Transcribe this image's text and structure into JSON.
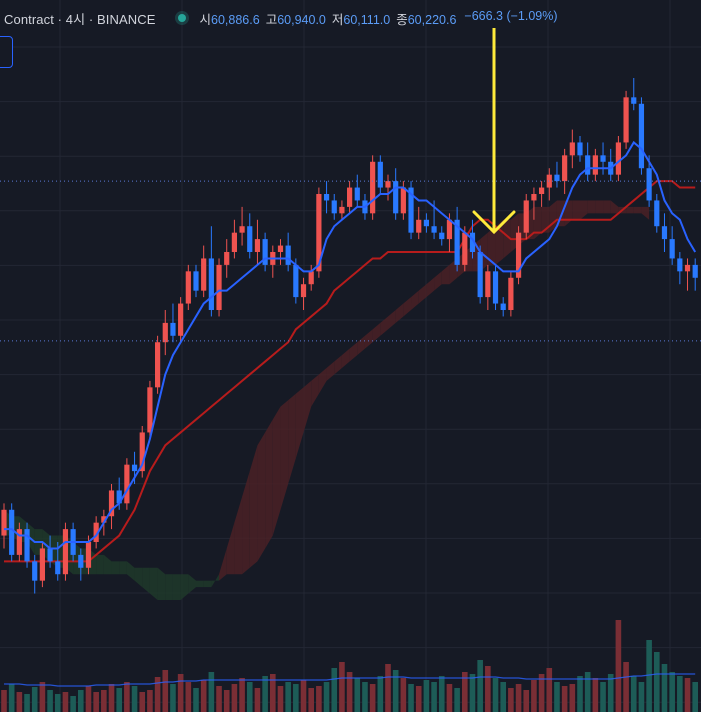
{
  "header": {
    "symbol": "Contract · 4시 · BINANCE",
    "status_color": "#26a69a",
    "open_label": "시",
    "open_value": "60,886.6",
    "high_label": "고",
    "high_value": "60,940.0",
    "low_label": "저",
    "low_value": "60,111.0",
    "close_label": "종",
    "close_value": "60,220.6",
    "change": "−666.3 (−1.09%)"
  },
  "colors": {
    "background": "#161a25",
    "grid": "#232734",
    "up": "#ef5350",
    "down": "#2979ff",
    "conversion_line": "#2962ff",
    "base_line": "#b71c1c",
    "cloud_bull": "#1e3a2a",
    "cloud_bear": "#4a2126",
    "volume_up": "#7a2e35",
    "volume_down": "#1d5c57",
    "arrow": "#ffeb3b"
  },
  "chart_data": {
    "type": "candlestick",
    "indicators": [
      "ichimoku",
      "volume"
    ],
    "grid": true,
    "ylim": [
      59000,
      63500
    ],
    "price_levels": [
      62250,
      61010
    ],
    "annotation": "arrow-down",
    "candles": [
      [
        59500,
        59750,
        59400,
        59700
      ],
      [
        59700,
        59750,
        59300,
        59350
      ],
      [
        59350,
        59600,
        59300,
        59550
      ],
      [
        59550,
        59600,
        59250,
        59300
      ],
      [
        59300,
        59350,
        59050,
        59150
      ],
      [
        59150,
        59450,
        59100,
        59400
      ],
      [
        59400,
        59500,
        59250,
        59300
      ],
      [
        59300,
        59450,
        59150,
        59200
      ],
      [
        59200,
        59600,
        59150,
        59550
      ],
      [
        59550,
        59600,
        59300,
        59350
      ],
      [
        59350,
        59400,
        59150,
        59250
      ],
      [
        59250,
        59500,
        59200,
        59450
      ],
      [
        59450,
        59650,
        59400,
        59600
      ],
      [
        59600,
        59700,
        59500,
        59650
      ],
      [
        59650,
        59900,
        59550,
        59850
      ],
      [
        59850,
        59950,
        59700,
        59750
      ],
      [
        59750,
        60100,
        59700,
        60050
      ],
      [
        60050,
        60150,
        59900,
        60000
      ],
      [
        60000,
        60350,
        59950,
        60300
      ],
      [
        60300,
        60700,
        60250,
        60650
      ],
      [
        60650,
        61050,
        60600,
        61000
      ],
      [
        61000,
        61250,
        60900,
        61150
      ],
      [
        61150,
        61300,
        61000,
        61050
      ],
      [
        61050,
        61350,
        61000,
        61300
      ],
      [
        61300,
        61600,
        61250,
        61550
      ],
      [
        61550,
        61600,
        61350,
        61400
      ],
      [
        61400,
        61750,
        61350,
        61650
      ],
      [
        61650,
        61900,
        61200,
        61250
      ],
      [
        61250,
        61650,
        61200,
        61600
      ],
      [
        61600,
        61800,
        61500,
        61700
      ],
      [
        61700,
        61950,
        61650,
        61850
      ],
      [
        61850,
        62050,
        61750,
        61900
      ],
      [
        61900,
        62000,
        61650,
        61700
      ],
      [
        61700,
        61950,
        61600,
        61800
      ],
      [
        61800,
        61850,
        61550,
        61600
      ],
      [
        61600,
        61750,
        61500,
        61700
      ],
      [
        61700,
        61800,
        61600,
        61750
      ],
      [
        61750,
        61850,
        61550,
        61600
      ],
      [
        61600,
        61650,
        61300,
        61350
      ],
      [
        61350,
        61500,
        61250,
        61450
      ],
      [
        61450,
        61600,
        61400,
        61550
      ],
      [
        61550,
        62200,
        61500,
        62150
      ],
      [
        62150,
        62250,
        62000,
        62100
      ],
      [
        62100,
        62150,
        61950,
        62000
      ],
      [
        62000,
        62100,
        61950,
        62050
      ],
      [
        62050,
        62250,
        62000,
        62200
      ],
      [
        62200,
        62300,
        62050,
        62100
      ],
      [
        62100,
        62150,
        61950,
        62000
      ],
      [
        62000,
        62450,
        61950,
        62400
      ],
      [
        62400,
        62450,
        62150,
        62200
      ],
      [
        62200,
        62300,
        62100,
        62250
      ],
      [
        62250,
        62350,
        61950,
        62000
      ],
      [
        62000,
        62250,
        61950,
        62200
      ],
      [
        62200,
        62250,
        61800,
        61850
      ],
      [
        61850,
        62050,
        61800,
        61950
      ],
      [
        61950,
        62000,
        61850,
        61900
      ],
      [
        61900,
        62100,
        61800,
        61850
      ],
      [
        61850,
        61900,
        61750,
        61800
      ],
      [
        61800,
        62000,
        61700,
        61950
      ],
      [
        61950,
        62050,
        61550,
        61600
      ],
      [
        61600,
        61900,
        61550,
        61850
      ],
      [
        61850,
        61950,
        61650,
        61700
      ],
      [
        61700,
        61750,
        61300,
        61350
      ],
      [
        61350,
        61600,
        61250,
        61550
      ],
      [
        61550,
        61600,
        61250,
        61300
      ],
      [
        61300,
        61350,
        61200,
        61250
      ],
      [
        61250,
        61550,
        61200,
        61500
      ],
      [
        61500,
        61900,
        61450,
        61850
      ],
      [
        61850,
        62150,
        61800,
        62100
      ],
      [
        62100,
        62200,
        61950,
        62150
      ],
      [
        62150,
        62250,
        62050,
        62200
      ],
      [
        62200,
        62350,
        62100,
        62300
      ],
      [
        62300,
        62400,
        62200,
        62250
      ],
      [
        62250,
        62500,
        62150,
        62450
      ],
      [
        62450,
        62650,
        62350,
        62550
      ],
      [
        62550,
        62600,
        62400,
        62450
      ],
      [
        62450,
        62550,
        62250,
        62300
      ],
      [
        62300,
        62500,
        62250,
        62450
      ],
      [
        62450,
        62550,
        62300,
        62400
      ],
      [
        62400,
        62500,
        62250,
        62300
      ],
      [
        62300,
        62600,
        62250,
        62550
      ],
      [
        62550,
        62950,
        62500,
        62900
      ],
      [
        62900,
        63050,
        62800,
        62850
      ],
      [
        62850,
        62900,
        62300,
        62350
      ],
      [
        62350,
        62450,
        62050,
        62100
      ],
      [
        62100,
        62150,
        61850,
        61900
      ],
      [
        61900,
        62000,
        61700,
        61800
      ],
      [
        61800,
        61900,
        61600,
        61650
      ],
      [
        61650,
        61700,
        61450,
        61550
      ],
      [
        61550,
        61650,
        61400,
        61600
      ],
      [
        61600,
        61650,
        61400,
        61500
      ]
    ],
    "conversion_line": [
      59550,
      59550,
      59500,
      59500,
      59450,
      59450,
      59400,
      59400,
      59450,
      59450,
      59450,
      59450,
      59500,
      59600,
      59700,
      59750,
      59850,
      59950,
      60050,
      60250,
      60500,
      60750,
      60900,
      61000,
      61100,
      61200,
      61300,
      61350,
      61400,
      61400,
      61450,
      61500,
      61550,
      61600,
      61650,
      61650,
      61650,
      61650,
      61600,
      61550,
      61550,
      61600,
      61800,
      61900,
      61950,
      62000,
      62050,
      62050,
      62100,
      62150,
      62150,
      62200,
      62200,
      62150,
      62100,
      62100,
      62050,
      62000,
      61950,
      61900,
      61850,
      61800,
      61700,
      61650,
      61600,
      61550,
      61550,
      61550,
      61650,
      61700,
      61750,
      61800,
      61900,
      62050,
      62200,
      62300,
      62350,
      62350,
      62350,
      62350,
      62400,
      62450,
      62550,
      62500,
      62400,
      62300,
      62100,
      62000,
      61950,
      61800,
      61700
    ],
    "base_line": [
      59300,
      59300,
      59300,
      59300,
      59300,
      59300,
      59300,
      59300,
      59300,
      59300,
      59300,
      59300,
      59350,
      59400,
      59450,
      59500,
      59600,
      59700,
      59850,
      60000,
      60100,
      60200,
      60250,
      60300,
      60350,
      60400,
      60450,
      60500,
      60550,
      60600,
      60650,
      60700,
      60750,
      60800,
      60850,
      60900,
      60950,
      61000,
      61100,
      61150,
      61200,
      61250,
      61300,
      61400,
      61450,
      61500,
      61550,
      61600,
      61650,
      61650,
      61700,
      61700,
      61700,
      61700,
      61700,
      61700,
      61700,
      61700,
      61700,
      61700,
      61800,
      61900,
      61950,
      61950,
      61900,
      61850,
      61800,
      61800,
      61800,
      61850,
      61850,
      61900,
      61950,
      61950,
      61950,
      61950,
      61950,
      61950,
      61950,
      61950,
      62000,
      62050,
      62100,
      62150,
      62200,
      62250,
      62250,
      62250,
      62200,
      62200,
      62200
    ],
    "cloud_span_a": [
      59700,
      59650,
      59650,
      59600,
      59550,
      59550,
      59500,
      59500,
      59500,
      59450,
      59400,
      59400,
      59350,
      59350,
      59300,
      59300,
      59300,
      59250,
      59250,
      59250,
      59250,
      59200,
      59200,
      59200,
      59200,
      59150,
      59150,
      59150,
      59150,
      59200,
      59200,
      59200,
      59250,
      59300,
      59400,
      59500,
      59700,
      59900,
      60100,
      60300,
      60500,
      60600,
      60700,
      60750,
      60800,
      60850,
      60900,
      60950,
      61000,
      61050,
      61100,
      61150,
      61200,
      61250,
      61300,
      61350,
      61400,
      61450,
      61450,
      61500,
      61550,
      61550,
      61550,
      61600,
      61600,
      61650,
      61700,
      61750,
      61800,
      61800,
      61850,
      61850,
      61900,
      61900,
      61950,
      61950,
      62000,
      62000,
      62000,
      62000,
      62000,
      62000,
      62000,
      62000,
      61950
    ],
    "cloud_span_b": [
      59500,
      59500,
      59450,
      59450,
      59350,
      59350,
      59300,
      59250,
      59250,
      59200,
      59200,
      59200,
      59200,
      59200,
      59200,
      59200,
      59200,
      59150,
      59100,
      59050,
      59000,
      59000,
      59000,
      59000,
      59050,
      59100,
      59100,
      59100,
      59200,
      59400,
      59600,
      59800,
      60000,
      60200,
      60300,
      60400,
      60500,
      60550,
      60600,
      60650,
      60700,
      60750,
      60800,
      60850,
      60900,
      60950,
      61000,
      61050,
      61100,
      61150,
      61200,
      61250,
      61300,
      61350,
      61400,
      61450,
      61500,
      61550,
      61600,
      61650,
      61700,
      61750,
      61800,
      61850,
      61900,
      61950,
      61950,
      62000,
      62000,
      62050,
      62050,
      62050,
      62100,
      62100,
      62100,
      62100,
      62100,
      62100,
      62100,
      62100,
      62050,
      62050,
      62050,
      62050,
      62050
    ],
    "volume": [
      22,
      28,
      20,
      18,
      25,
      30,
      22,
      18,
      20,
      16,
      22,
      26,
      20,
      22,
      28,
      24,
      30,
      26,
      20,
      22,
      35,
      42,
      28,
      38,
      30,
      24,
      32,
      40,
      26,
      22,
      28,
      34,
      30,
      24,
      36,
      38,
      26,
      30,
      28,
      32,
      24,
      26,
      30,
      44,
      50,
      40,
      34,
      30,
      28,
      36,
      48,
      42,
      34,
      28,
      26,
      32,
      30,
      36,
      28,
      24,
      40,
      38,
      52,
      46,
      34,
      30,
      24,
      28,
      22,
      32,
      38,
      44,
      30,
      26,
      28,
      36,
      40,
      34,
      30,
      38,
      92,
      50,
      36,
      30,
      72,
      60,
      48,
      40,
      36,
      34,
      30
    ],
    "volume_ma": [
      28,
      28,
      28,
      27,
      27,
      27,
      27,
      26,
      26,
      26,
      26,
      26,
      27,
      27,
      27,
      27,
      28,
      28,
      28,
      28,
      29,
      30,
      30,
      31,
      31,
      31,
      32,
      32,
      32,
      32,
      32,
      32,
      32,
      32,
      32,
      32,
      32,
      32,
      32,
      32,
      32,
      32,
      32,
      33,
      34,
      34,
      34,
      34,
      34,
      34,
      35,
      35,
      35,
      34,
      34,
      34,
      34,
      34,
      34,
      34,
      34,
      34,
      35,
      35,
      35,
      34,
      34,
      34,
      33,
      33,
      33,
      33,
      33,
      33,
      33,
      33,
      33,
      33,
      33,
      33,
      34,
      35,
      36,
      36,
      37,
      38,
      38,
      38,
      38,
      38,
      38
    ]
  }
}
